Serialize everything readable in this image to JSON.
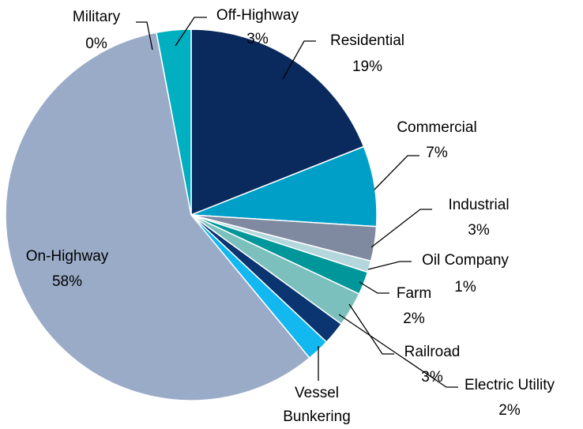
{
  "chart_data": {
    "type": "pie",
    "categories": [
      "Residential",
      "Commercial",
      "Industrial",
      "Oil Company",
      "Farm",
      "Railroad",
      "Electric Utility",
      "Vessel Bunkering",
      "On-Highway",
      "Military",
      "Off-Highway"
    ],
    "values": [
      19,
      7,
      3,
      1,
      2,
      3,
      2,
      2,
      58,
      0,
      3
    ],
    "value_labels": [
      "19%",
      "7%",
      "3%",
      "1%",
      "2%",
      "3%",
      "2%",
      null,
      "58%",
      "0%",
      "3%"
    ],
    "colors": [
      "#0a2a5e",
      "#009fc8",
      "#7f8aa0",
      "#b3d7dc",
      "#00969a",
      "#7cc0bd",
      "#0a3570",
      "#12b8ef",
      "#9aabc8",
      "#bfe3e6",
      "#00b0c0"
    ]
  }
}
